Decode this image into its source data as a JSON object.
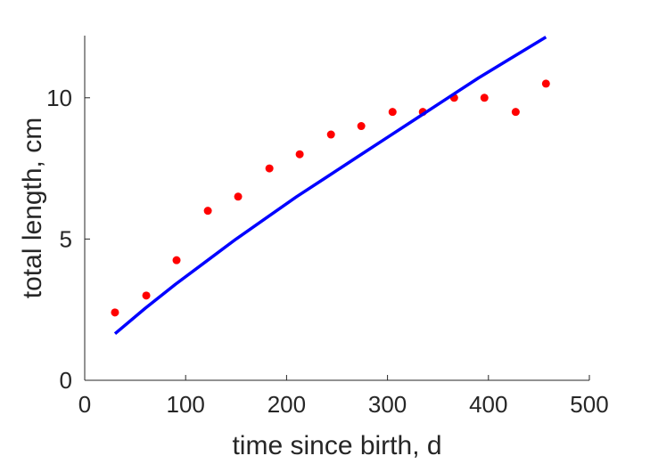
{
  "chart_data": {
    "type": "scatter",
    "title": "",
    "xlabel": "time since birth, d",
    "ylabel": "total length, cm",
    "xlim": [
      0,
      500
    ],
    "ylim": [
      0,
      12.2
    ],
    "x_ticks": [
      0,
      100,
      200,
      300,
      400,
      500
    ],
    "x_tick_labels": [
      "0",
      "100",
      "200",
      "300",
      "400",
      "500"
    ],
    "y_ticks": [
      0,
      5,
      10
    ],
    "y_tick_labels": [
      "0",
      "5",
      "10"
    ],
    "grid": false,
    "legend": "none",
    "series": [
      {
        "type": "scatter",
        "color": "#ff0000",
        "x": [
          30,
          61,
          91,
          122,
          152,
          183,
          213,
          244,
          274,
          305,
          335,
          366,
          396,
          427,
          457
        ],
        "y": [
          2.4,
          3.0,
          4.25,
          6.0,
          6.5,
          7.5,
          8.0,
          8.7,
          9.0,
          9.5,
          9.5,
          10.0,
          10.0,
          9.5,
          10.5
        ]
      },
      {
        "type": "line",
        "color": "#0000ff",
        "x": [
          30,
          60,
          90,
          120,
          150,
          180,
          210,
          240,
          270,
          300,
          330,
          360,
          390,
          420,
          457
        ],
        "y": [
          1.65,
          2.55,
          3.4,
          4.2,
          5.0,
          5.75,
          6.5,
          7.2,
          7.9,
          8.6,
          9.3,
          10.0,
          10.7,
          11.35,
          12.15
        ]
      }
    ]
  }
}
